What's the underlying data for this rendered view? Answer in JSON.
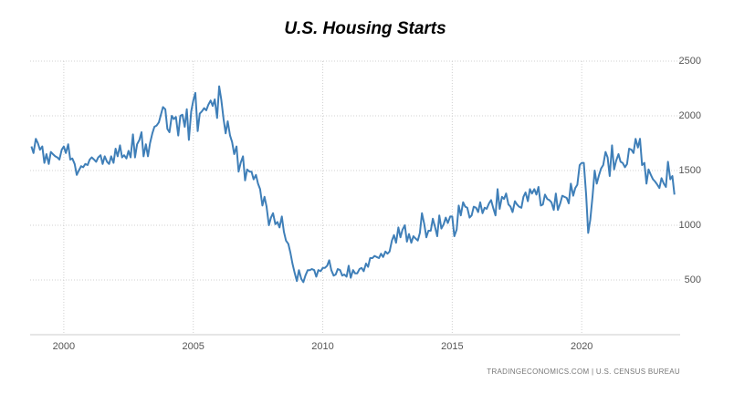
{
  "chart_data": {
    "type": "line",
    "title": "U.S. Housing Starts",
    "source": "TRADINGECONOMICS.COM  |  U.S. CENSUS BUREAU",
    "xlim": [
      1998.7,
      2023.8
    ],
    "xticks": [
      2000,
      2005,
      2010,
      2015,
      2020
    ],
    "ylim": [
      0,
      2500
    ],
    "yticks": [
      500,
      1000,
      1500,
      2000,
      2500
    ],
    "grid": true,
    "x": [
      1998.75,
      1998.83,
      1998.92,
      1999.0,
      1999.08,
      1999.17,
      1999.25,
      1999.33,
      1999.42,
      1999.5,
      1999.58,
      1999.67,
      1999.75,
      1999.83,
      1999.92,
      2000.0,
      2000.08,
      2000.17,
      2000.25,
      2000.33,
      2000.42,
      2000.5,
      2000.58,
      2000.67,
      2000.75,
      2000.83,
      2000.92,
      2001.0,
      2001.08,
      2001.17,
      2001.25,
      2001.33,
      2001.42,
      2001.5,
      2001.58,
      2001.67,
      2001.75,
      2001.83,
      2001.92,
      2002.0,
      2002.08,
      2002.17,
      2002.25,
      2002.33,
      2002.42,
      2002.5,
      2002.58,
      2002.67,
      2002.75,
      2002.83,
      2002.92,
      2003.0,
      2003.08,
      2003.17,
      2003.25,
      2003.33,
      2003.42,
      2003.5,
      2003.58,
      2003.67,
      2003.75,
      2003.83,
      2003.92,
      2004.0,
      2004.08,
      2004.17,
      2004.25,
      2004.33,
      2004.42,
      2004.5,
      2004.58,
      2004.67,
      2004.75,
      2004.83,
      2004.92,
      2005.0,
      2005.08,
      2005.17,
      2005.25,
      2005.33,
      2005.42,
      2005.5,
      2005.58,
      2005.67,
      2005.75,
      2005.83,
      2005.92,
      2006.0,
      2006.08,
      2006.17,
      2006.25,
      2006.33,
      2006.42,
      2006.5,
      2006.58,
      2006.67,
      2006.75,
      2006.83,
      2006.92,
      2007.0,
      2007.08,
      2007.17,
      2007.25,
      2007.33,
      2007.42,
      2007.5,
      2007.58,
      2007.67,
      2007.75,
      2007.83,
      2007.92,
      2008.0,
      2008.08,
      2008.17,
      2008.25,
      2008.33,
      2008.42,
      2008.5,
      2008.58,
      2008.67,
      2008.75,
      2008.83,
      2008.92,
      2009.0,
      2009.08,
      2009.17,
      2009.25,
      2009.33,
      2009.42,
      2009.5,
      2009.58,
      2009.67,
      2009.75,
      2009.83,
      2009.92,
      2010.0,
      2010.08,
      2010.17,
      2010.25,
      2010.33,
      2010.42,
      2010.5,
      2010.58,
      2010.67,
      2010.75,
      2010.83,
      2010.92,
      2011.0,
      2011.08,
      2011.17,
      2011.25,
      2011.33,
      2011.42,
      2011.5,
      2011.58,
      2011.67,
      2011.75,
      2011.83,
      2011.92,
      2012.0,
      2012.08,
      2012.17,
      2012.25,
      2012.33,
      2012.42,
      2012.5,
      2012.58,
      2012.67,
      2012.75,
      2012.83,
      2012.92,
      2013.0,
      2013.08,
      2013.17,
      2013.25,
      2013.33,
      2013.42,
      2013.5,
      2013.58,
      2013.67,
      2013.75,
      2013.83,
      2013.92,
      2014.0,
      2014.08,
      2014.17,
      2014.25,
      2014.33,
      2014.42,
      2014.5,
      2014.58,
      2014.67,
      2014.75,
      2014.83,
      2014.92,
      2015.0,
      2015.08,
      2015.17,
      2015.25,
      2015.33,
      2015.42,
      2015.5,
      2015.58,
      2015.67,
      2015.75,
      2015.83,
      2015.92,
      2016.0,
      2016.08,
      2016.17,
      2016.25,
      2016.33,
      2016.42,
      2016.5,
      2016.58,
      2016.67,
      2016.75,
      2016.83,
      2016.92,
      2017.0,
      2017.08,
      2017.17,
      2017.25,
      2017.33,
      2017.42,
      2017.5,
      2017.58,
      2017.67,
      2017.75,
      2017.83,
      2017.92,
      2018.0,
      2018.08,
      2018.17,
      2018.25,
      2018.33,
      2018.42,
      2018.5,
      2018.58,
      2018.67,
      2018.75,
      2018.83,
      2018.92,
      2019.0,
      2019.08,
      2019.17,
      2019.25,
      2019.33,
      2019.42,
      2019.5,
      2019.58,
      2019.67,
      2019.75,
      2019.83,
      2019.92,
      2020.0,
      2020.08,
      2020.17,
      2020.25,
      2020.33,
      2020.42,
      2020.5,
      2020.58,
      2020.67,
      2020.75,
      2020.83,
      2020.92,
      2021.0,
      2021.08,
      2021.17,
      2021.25,
      2021.33,
      2021.42,
      2021.5,
      2021.58,
      2021.67,
      2021.75,
      2021.83,
      2021.92,
      2022.0,
      2022.08,
      2022.17,
      2022.25,
      2022.33,
      2022.42,
      2022.5,
      2022.58,
      2022.67,
      2022.75,
      2022.83,
      2022.92,
      2023.0,
      2023.08,
      2023.17,
      2023.25,
      2023.33,
      2023.42,
      2023.5,
      2023.58
    ],
    "series": [
      {
        "color": "#3f7fb8",
        "values": [
          1720,
          1660,
          1790,
          1750,
          1690,
          1720,
          1570,
          1650,
          1560,
          1670,
          1650,
          1630,
          1620,
          1600,
          1690,
          1720,
          1660,
          1740,
          1600,
          1610,
          1560,
          1460,
          1500,
          1540,
          1530,
          1560,
          1550,
          1600,
          1620,
          1600,
          1580,
          1620,
          1640,
          1560,
          1630,
          1580,
          1560,
          1630,
          1570,
          1700,
          1630,
          1730,
          1620,
          1640,
          1610,
          1680,
          1620,
          1830,
          1620,
          1740,
          1780,
          1850,
          1630,
          1740,
          1630,
          1750,
          1840,
          1900,
          1910,
          1940,
          2010,
          2080,
          2060,
          1880,
          1850,
          2000,
          1970,
          1990,
          1820,
          2000,
          2010,
          1900,
          2060,
          1780,
          2040,
          2140,
          2210,
          1860,
          2020,
          2040,
          2070,
          2050,
          2100,
          2140,
          2090,
          2150,
          1980,
          2270,
          2150,
          1970,
          1840,
          1950,
          1820,
          1760,
          1650,
          1720,
          1490,
          1570,
          1630,
          1410,
          1510,
          1490,
          1490,
          1420,
          1460,
          1380,
          1330,
          1180,
          1260,
          1170,
          1000,
          1070,
          1110,
          1010,
          1030,
          980,
          1080,
          940,
          860,
          830,
          750,
          650,
          560,
          490,
          590,
          510,
          480,
          540,
          590,
          590,
          600,
          590,
          530,
          590,
          580,
          610,
          610,
          630,
          680,
          590,
          540,
          550,
          600,
          590,
          540,
          550,
          530,
          630,
          520,
          590,
          560,
          560,
          600,
          610,
          580,
          650,
          620,
          700,
          700,
          720,
          710,
          700,
          740,
          710,
          760,
          740,
          760,
          860,
          910,
          840,
          980,
          890,
          960,
          1000,
          850,
          920,
          840,
          900,
          880,
          860,
          930,
          1110,
          1010,
          890,
          950,
          950,
          1060,
          990,
          900,
          1090,
          970,
          1010,
          1070,
          1020,
          1080,
          1080,
          900,
          960,
          1180,
          1090,
          1210,
          1170,
          1160,
          1070,
          1090,
          1170,
          1160,
          1120,
          1210,
          1110,
          1160,
          1150,
          1200,
          1230,
          1160,
          1090,
          1330,
          1150,
          1260,
          1240,
          1290,
          1190,
          1170,
          1120,
          1220,
          1190,
          1170,
          1160,
          1260,
          1300,
          1220,
          1330,
          1290,
          1330,
          1280,
          1350,
          1180,
          1190,
          1280,
          1240,
          1230,
          1210,
          1140,
          1290,
          1140,
          1200,
          1270,
          1260,
          1250,
          1200,
          1380,
          1270,
          1340,
          1370,
          1550,
          1570,
          1570,
          1280,
          930,
          1050,
          1270,
          1500,
          1380,
          1460,
          1520,
          1550,
          1670,
          1620,
          1450,
          1730,
          1510,
          1590,
          1650,
          1580,
          1570,
          1530,
          1560,
          1700,
          1690,
          1660,
          1790,
          1710,
          1790,
          1550,
          1570,
          1380,
          1510,
          1460,
          1420,
          1400,
          1370,
          1340,
          1430,
          1380,
          1350,
          1580,
          1420,
          1450,
          1280
        ]
      }
    ]
  }
}
